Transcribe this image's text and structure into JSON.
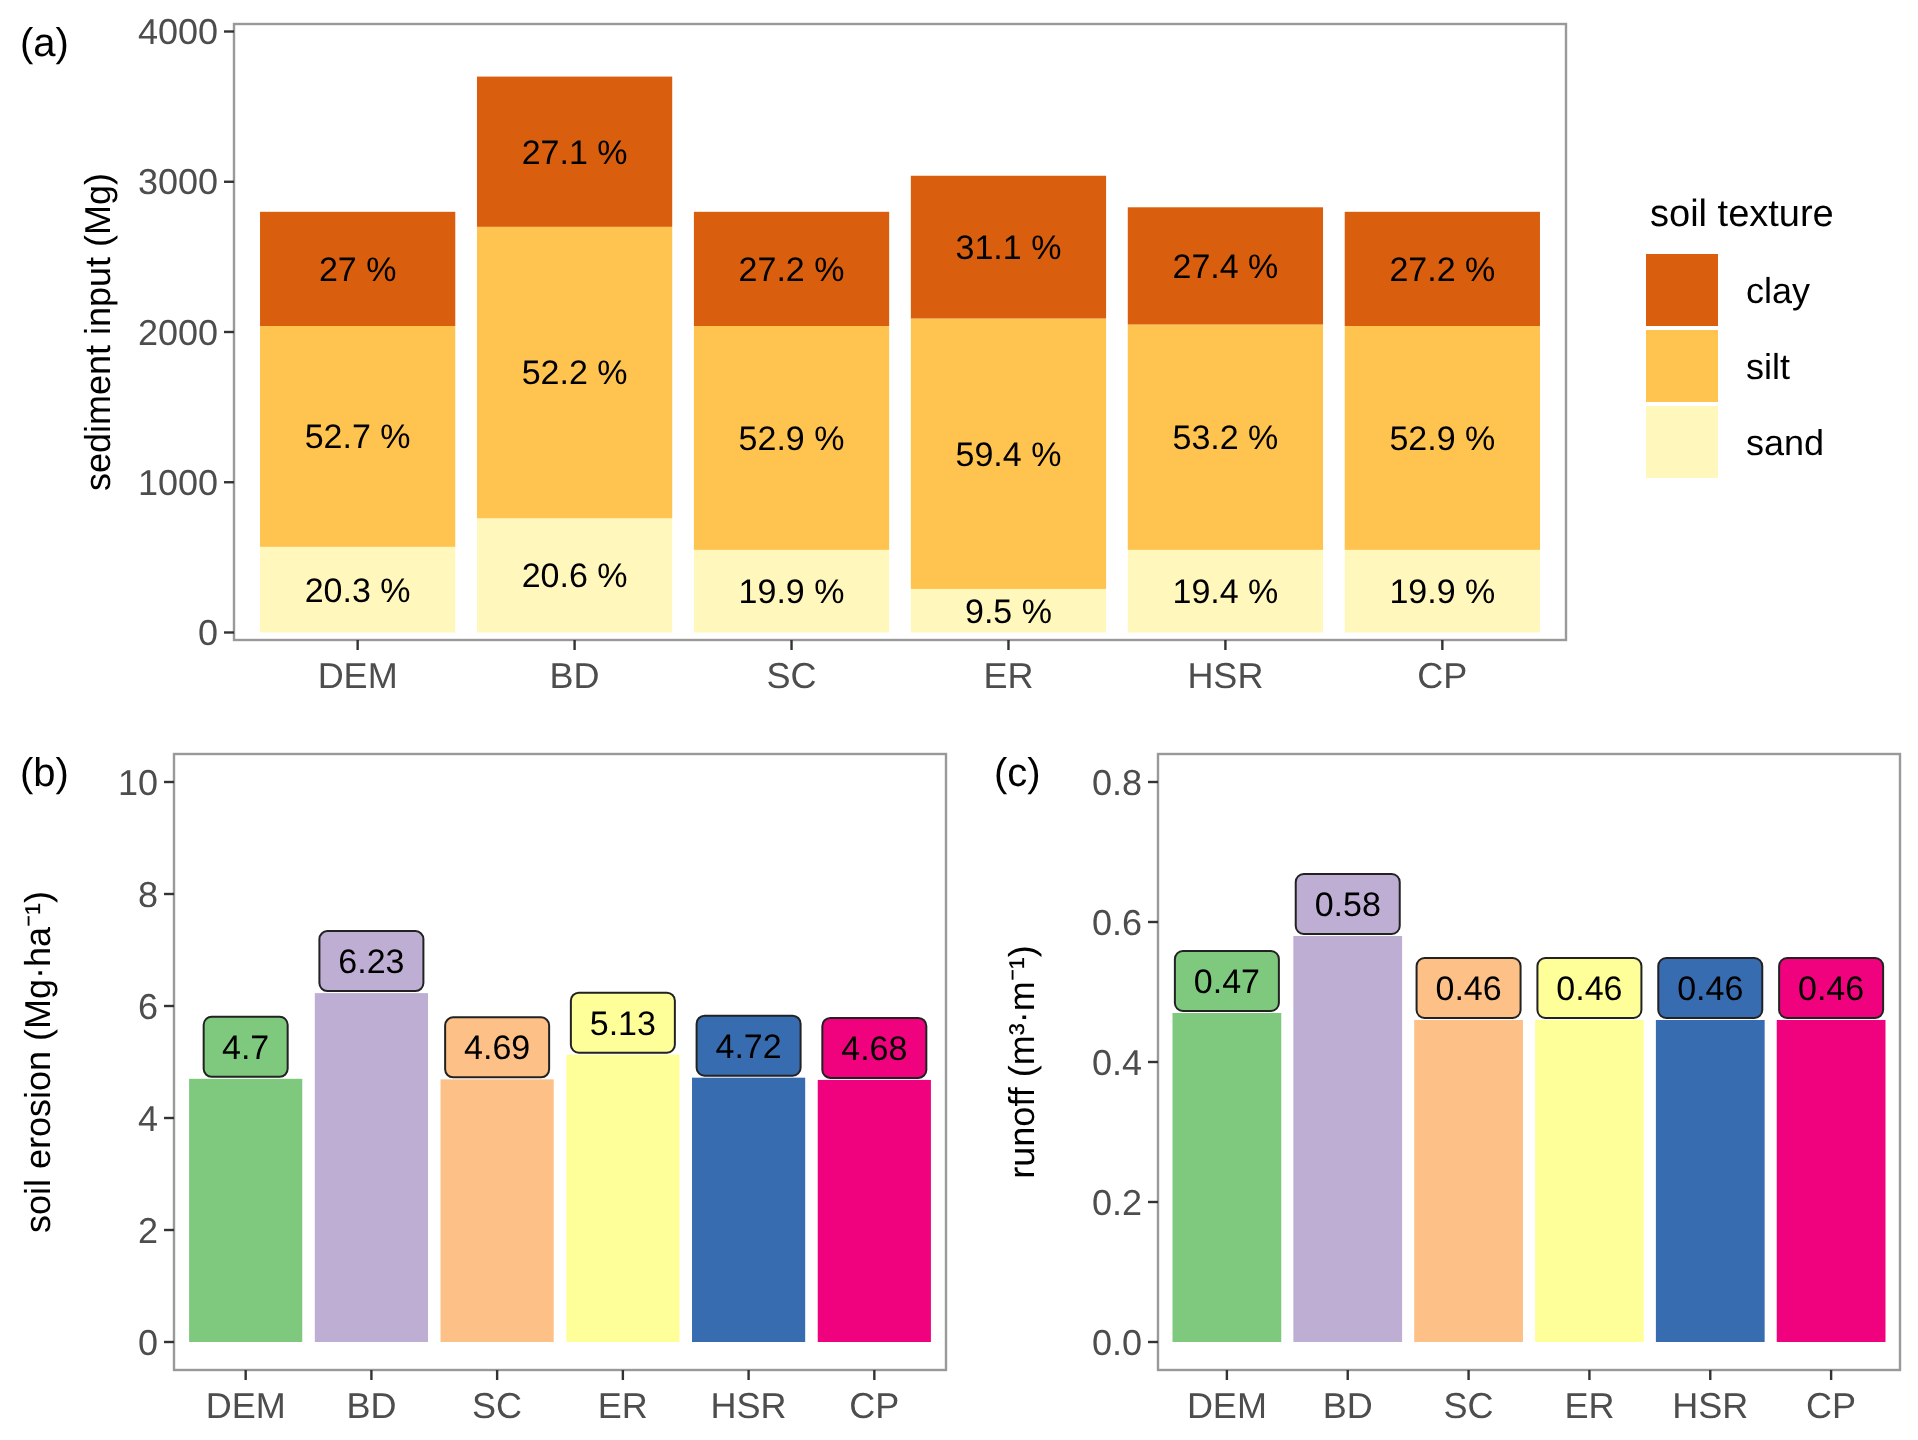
{
  "chart_data": [
    {
      "type": "bar",
      "title": "(a)",
      "ylabel": "sediment input (Mg)",
      "legend_title": "soil texture",
      "legend": "right",
      "stacked": true,
      "categories": [
        "DEM",
        "BD",
        "SC",
        "ER",
        "HSR",
        "CP"
      ],
      "ylim": [
        -50,
        4050
      ],
      "yticks": [
        0,
        1000,
        2000,
        3000,
        4000
      ],
      "series": [
        {
          "name": "sand",
          "color": "#fff7bc",
          "values": [
            570,
            760,
            550,
            290,
            550,
            550
          ]
        },
        {
          "name": "silt",
          "color": "#fec44f",
          "values": [
            1470,
            1940,
            1490,
            1800,
            1500,
            1490
          ]
        },
        {
          "name": "clay",
          "color": "#d95f0e",
          "values": [
            760,
            1000,
            760,
            950,
            780,
            760
          ]
        }
      ],
      "annotations": [
        "20.3 %",
        "20.6 %",
        "19.9 %",
        "9.5 %",
        "19.4 %",
        "19.9 %",
        "52.7 %",
        "52.2 %",
        "52.9 %",
        "59.4 %",
        "53.2 %",
        "52.9 %",
        "27 %",
        "27.1 %",
        "27.2 %",
        "31.1 %",
        "27.4 %",
        "27.2 %"
      ]
    },
    {
      "type": "bar",
      "title": "(b)",
      "ylabel": "soil erosion (Mg·ha⁻¹)",
      "categories": [
        "DEM",
        "BD",
        "SC",
        "ER",
        "HSR",
        "CP"
      ],
      "ylim": [
        -0.5,
        10.5
      ],
      "yticks": [
        0,
        2,
        4,
        6,
        8,
        10
      ],
      "values": [
        4.7,
        6.23,
        4.69,
        5.13,
        4.72,
        4.68
      ],
      "colors": [
        "#7fc97f",
        "#beaed4",
        "#fdc086",
        "#ffff99",
        "#386cb0",
        "#f0027f"
      ],
      "data_labels": true
    },
    {
      "type": "bar",
      "title": "(c)",
      "ylabel": "runoff (m³·m⁻¹)",
      "categories": [
        "DEM",
        "BD",
        "SC",
        "ER",
        "HSR",
        "CP"
      ],
      "ylim": [
        -0.04,
        0.84
      ],
      "yticks": [
        {
          "value": 0,
          "label": "0.0"
        },
        0.2,
        0.4,
        0.6,
        0.8
      ],
      "values": [
        0.47,
        0.58,
        0.46,
        0.46,
        0.46,
        0.46
      ],
      "colors": [
        "#7fc97f",
        "#beaed4",
        "#fdc086",
        "#ffff99",
        "#386cb0",
        "#f0027f"
      ],
      "data_labels": true
    }
  ]
}
